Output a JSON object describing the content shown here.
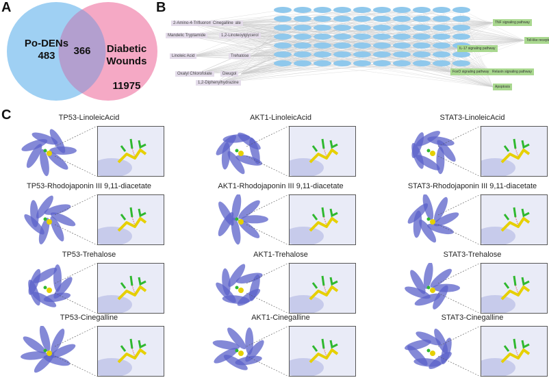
{
  "panels": {
    "a": "A",
    "b": "B",
    "c": "C"
  },
  "venn": {
    "left": {
      "label": "Po-DENs",
      "count": "483",
      "color": "#9fd0f3"
    },
    "overlap": {
      "count": "366",
      "color": "#b39fcf"
    },
    "right": {
      "label": "Diabetic\nWounds",
      "count": "11975",
      "color": "#f5a9c5"
    }
  },
  "network": {
    "compounds": [
      "2-Amino-4-Trifluoromethoxybenzoate",
      "Cinegalline",
      "Mandelic Tryptamide",
      "1,2-Linoleoylglycerol",
      "Linoleic Acid",
      "Trehalose",
      "Oxalyl Chlorofolate",
      "Dieugol",
      "1,2-Diphenylhydrazine"
    ],
    "pathways": [
      "TNF signaling pathway",
      "Toll-like receptor pathway",
      "IL-17 signaling pathway",
      "FoxO signaling pathway",
      "Relaxin signaling pathway",
      "Apoptosis"
    ],
    "target_count": 70
  },
  "docking": [
    [
      "TP53-LinoleicAcid",
      "AKT1-LinoleicAcid",
      "STAT3-LinoleicAcid"
    ],
    [
      "TP53-Rhodojaponin III 9,11-diacetate",
      "AKT1-Rhodojaponin III 9,11-diacetate",
      "STAT3-Rhodojaponin III 9,11-diacetate"
    ],
    [
      "TP53-Trehalose",
      "AKT1-Trehalose",
      "STAT3-Trehalose"
    ],
    [
      "TP53-Cinegalline",
      "AKT1-Cinegalline",
      "STAT3-Cinegalline"
    ]
  ],
  "colors": {
    "protein": "#5b61c9",
    "ligand": "#e6d000",
    "residue": "#2fb82f",
    "bond": "#e05050"
  }
}
